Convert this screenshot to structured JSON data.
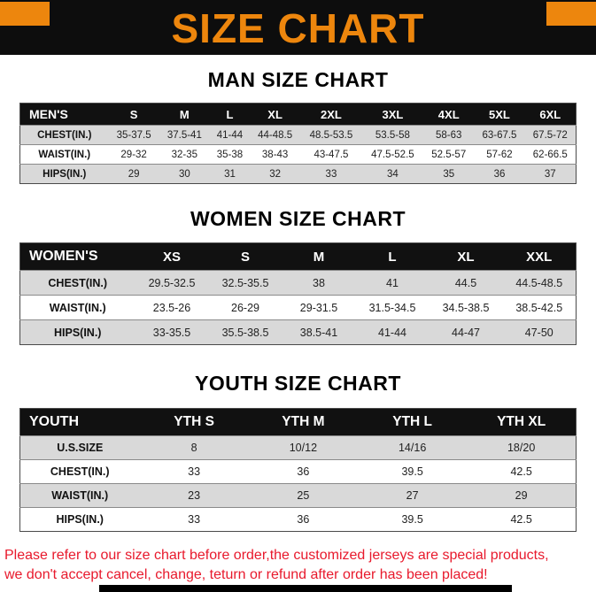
{
  "banner": {
    "title": "SIZE CHART"
  },
  "man": {
    "heading": "MAN SIZE CHART",
    "header": [
      "MEN'S",
      "S",
      "M",
      "L",
      "XL",
      "2XL",
      "3XL",
      "4XL",
      "5XL",
      "6XL"
    ],
    "rows": [
      [
        "CHEST(IN.)",
        "35-37.5",
        "37.5-41",
        "41-44",
        "44-48.5",
        "48.5-53.5",
        "53.5-58",
        "58-63",
        "63-67.5",
        "67.5-72"
      ],
      [
        "WAIST(IN.)",
        "29-32",
        "32-35",
        "35-38",
        "38-43",
        "43-47.5",
        "47.5-52.5",
        "52.5-57",
        "57-62",
        "62-66.5"
      ],
      [
        "HIPS(IN.)",
        "29",
        "30",
        "31",
        "32",
        "33",
        "34",
        "35",
        "36",
        "37"
      ]
    ]
  },
  "women": {
    "heading": "WOMEN SIZE CHART",
    "header": [
      "WOMEN'S",
      "XS",
      "S",
      "M",
      "L",
      "XL",
      "XXL"
    ],
    "rows": [
      [
        "CHEST(IN.)",
        "29.5-32.5",
        "32.5-35.5",
        "38",
        "41",
        "44.5",
        "44.5-48.5"
      ],
      [
        "WAIST(IN.)",
        "23.5-26",
        "26-29",
        "29-31.5",
        "31.5-34.5",
        "34.5-38.5",
        "38.5-42.5"
      ],
      [
        "HIPS(IN.)",
        "33-35.5",
        "35.5-38.5",
        "38.5-41",
        "41-44",
        "44-47",
        "47-50"
      ]
    ]
  },
  "youth": {
    "heading": "YOUTH SIZE CHART",
    "header": [
      "YOUTH",
      "YTH S",
      "YTH M",
      "YTH L",
      "YTH XL"
    ],
    "rows": [
      [
        "U.S.SIZE",
        "8",
        "10/12",
        "14/16",
        "18/20"
      ],
      [
        "CHEST(IN.)",
        "33",
        "36",
        "39.5",
        "42.5"
      ],
      [
        "WAIST(IN.)",
        "23",
        "25",
        "27",
        "29"
      ],
      [
        "HIPS(IN.)",
        "33",
        "36",
        "39.5",
        "42.5"
      ]
    ]
  },
  "footer": {
    "line1": "Please refer to our size chart before order,the customized jerseys are special products,",
    "line2": "we don't accept cancel, change, teturn or refund after order has been placed!"
  },
  "colors": {
    "accent_orange": "#ED860D",
    "banner_black": "#0D0D0D",
    "stripe_gray": "#D9D9D9",
    "footer_red": "#E8192C"
  }
}
